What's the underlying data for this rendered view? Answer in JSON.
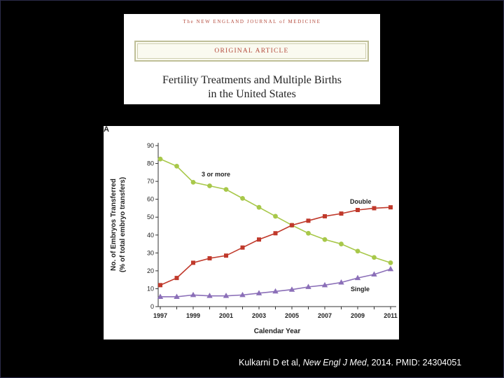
{
  "header": {
    "journal_name": "The NEW ENGLAND JOURNAL of MEDICINE",
    "article_type": "ORIGINAL ARTICLE",
    "title_line1": "Fertility Treatments and Multiple Births",
    "title_line2": "in the United States"
  },
  "chart_data": {
    "type": "line",
    "panel_label": "A",
    "title": "",
    "xlabel": "Calendar Year",
    "ylabel_line1": "No. of Embryos Transferred",
    "ylabel_line2": "(% of total embryo transfers)",
    "x": [
      1997,
      1998,
      1999,
      2000,
      2001,
      2002,
      2003,
      2004,
      2005,
      2006,
      2007,
      2008,
      2009,
      2010,
      2011
    ],
    "xlim": [
      1997,
      2011
    ],
    "ylim": [
      0,
      90
    ],
    "x_ticks": [
      "1997",
      "1999",
      "2001",
      "2003",
      "2005",
      "2007",
      "2009",
      "2011"
    ],
    "y_ticks": [
      "0",
      "10",
      "20",
      "30",
      "40",
      "50",
      "60",
      "70",
      "80",
      "90"
    ],
    "series": [
      {
        "name": "3 or more",
        "marker": "circle",
        "color": "#a8c84a",
        "values": [
          82.5,
          78.5,
          69.5,
          67.5,
          65.5,
          60.5,
          55.5,
          50.5,
          45.5,
          41,
          37.5,
          35,
          31,
          27.5,
          24.5
        ]
      },
      {
        "name": "Double",
        "marker": "square",
        "color": "#c0392b",
        "values": [
          12,
          16,
          24.5,
          27,
          28.5,
          33,
          37.5,
          41,
          45.5,
          48,
          50.5,
          52,
          54,
          55,
          55.5
        ]
      },
      {
        "name": "Single",
        "marker": "triangle",
        "color": "#8b6fb8",
        "values": [
          5.5,
          5.5,
          6.5,
          6,
          6,
          6.5,
          7.5,
          8.5,
          9.5,
          11,
          12,
          13.5,
          16,
          18,
          21
        ]
      }
    ]
  },
  "citation": {
    "prefix": "Kulkarni D et al, ",
    "journal": "New Engl J Med",
    "suffix": ", 2014. PMID: 24304051"
  }
}
